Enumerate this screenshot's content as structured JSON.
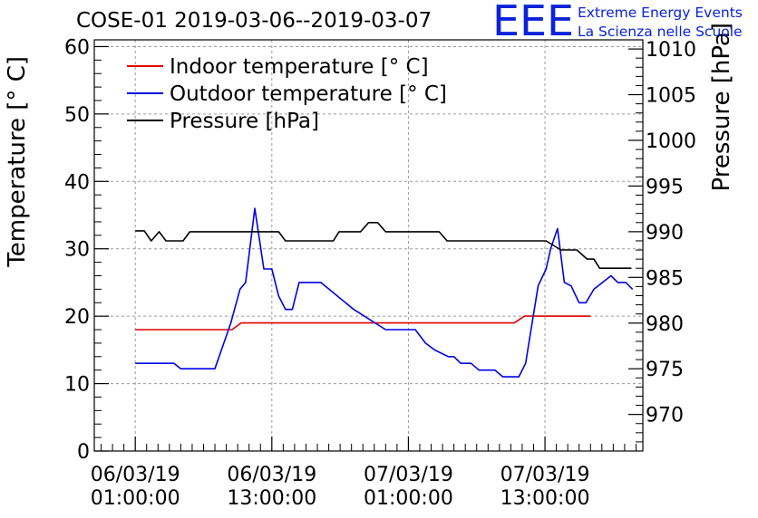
{
  "chart_data": {
    "type": "line",
    "title": "COSE-01 2019-03-06--2019-03-07",
    "ylabel": "Temperature [° C]",
    "y2label": "Pressure [hPa]",
    "ylim": [
      0,
      61
    ],
    "y2lim": [
      966,
      1011
    ],
    "yticks": [
      0,
      10,
      20,
      30,
      40,
      50,
      60
    ],
    "y2ticks": [
      970,
      975,
      980,
      985,
      990,
      995,
      1000,
      1005,
      1010
    ],
    "xlim": [
      -3.6,
      44.6
    ],
    "xticks": [
      {
        "x": 0,
        "date": "06/03/19",
        "time": "01:00:00"
      },
      {
        "x": 12,
        "date": "06/03/19",
        "time": "13:00:00"
      },
      {
        "x": 24,
        "date": "07/03/19",
        "time": "01:00:00"
      },
      {
        "x": 36,
        "date": "07/03/19",
        "time": "13:00:00"
      }
    ],
    "grid": true,
    "legend_position": "top-left",
    "series": [
      {
        "name": "Indoor temperature [° C]",
        "color": "#e00000",
        "axis": "left",
        "points": [
          [
            0,
            18
          ],
          [
            8.5,
            18
          ],
          [
            9.3,
            19
          ],
          [
            33.3,
            19
          ],
          [
            34.2,
            20
          ],
          [
            40,
            20
          ]
        ]
      },
      {
        "name": "Outdoor temperature [° C]",
        "color": "#0000e6",
        "axis": "left",
        "points": [
          [
            0,
            13
          ],
          [
            3.4,
            13
          ],
          [
            4,
            12.2
          ],
          [
            7,
            12.2
          ],
          [
            8.4,
            19
          ],
          [
            9.2,
            24
          ],
          [
            9.7,
            25
          ],
          [
            10.5,
            36
          ],
          [
            11.3,
            27
          ],
          [
            12,
            27
          ],
          [
            12.6,
            23
          ],
          [
            13.2,
            21
          ],
          [
            13.8,
            21
          ],
          [
            14.4,
            25
          ],
          [
            16.3,
            25
          ],
          [
            19.2,
            21
          ],
          [
            22,
            18
          ],
          [
            24.6,
            18
          ],
          [
            25.5,
            16
          ],
          [
            26.3,
            15
          ],
          [
            27.5,
            14
          ],
          [
            28,
            14
          ],
          [
            28.6,
            13
          ],
          [
            29.5,
            13
          ],
          [
            30.2,
            12
          ],
          [
            31.6,
            12
          ],
          [
            32.3,
            11
          ],
          [
            33.7,
            11
          ],
          [
            34.3,
            13
          ],
          [
            35.4,
            24.5
          ],
          [
            36.1,
            27
          ],
          [
            36.5,
            30
          ],
          [
            37.1,
            33
          ],
          [
            37.7,
            25
          ],
          [
            38.3,
            24.5
          ],
          [
            39,
            22
          ],
          [
            39.6,
            22
          ],
          [
            40.3,
            24
          ],
          [
            41.8,
            26
          ],
          [
            42.4,
            25
          ],
          [
            43.1,
            25
          ],
          [
            43.7,
            24
          ]
        ]
      },
      {
        "name": "Pressure [hPa]",
        "color": "#000000",
        "axis": "right",
        "points": [
          [
            0,
            990.1
          ],
          [
            0.8,
            990.1
          ],
          [
            1.4,
            989
          ],
          [
            2.1,
            990
          ],
          [
            2.7,
            989
          ],
          [
            4.2,
            989
          ],
          [
            4.8,
            990
          ],
          [
            12.6,
            990
          ],
          [
            13.2,
            989
          ],
          [
            15.5,
            989
          ],
          [
            17.4,
            989
          ],
          [
            17.9,
            990
          ],
          [
            19.8,
            990
          ],
          [
            20.5,
            991
          ],
          [
            21.3,
            991
          ],
          [
            22,
            990
          ],
          [
            26.7,
            990
          ],
          [
            27.4,
            989
          ],
          [
            33,
            989
          ],
          [
            36.1,
            989
          ],
          [
            37.4,
            988
          ],
          [
            38.8,
            988
          ],
          [
            39.7,
            987
          ],
          [
            40.3,
            987
          ],
          [
            40.8,
            986
          ],
          [
            41.5,
            986
          ],
          [
            43.6,
            986
          ]
        ]
      }
    ]
  },
  "logo": {
    "mark": "EEE",
    "line1": "Extreme Energy Events",
    "line2": "La Scienza nelle Scuole"
  }
}
